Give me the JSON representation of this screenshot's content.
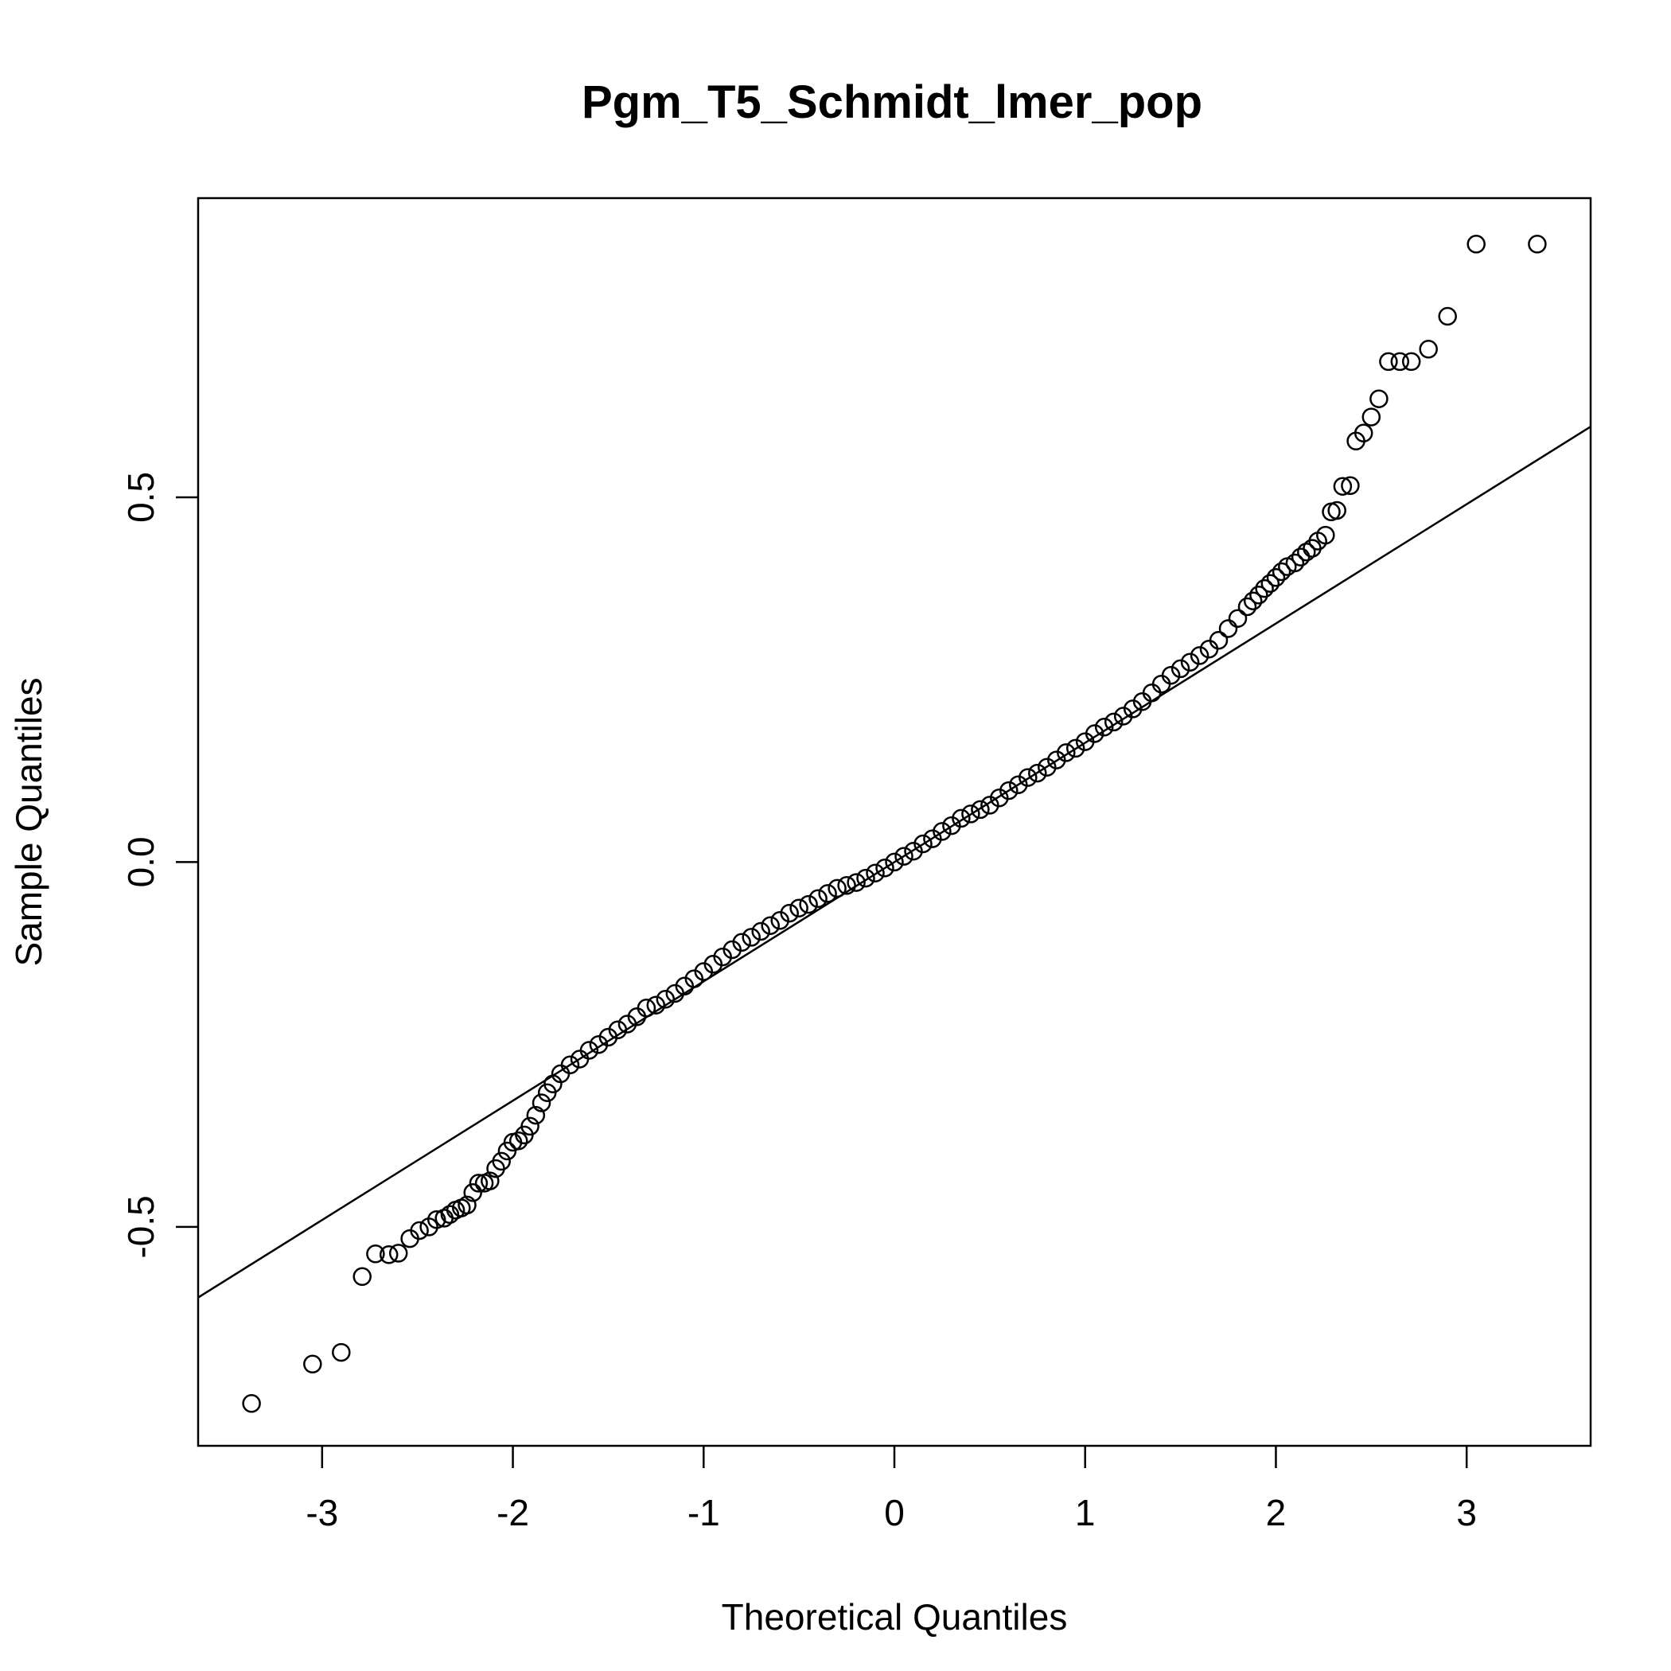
{
  "chart_data": {
    "type": "scatter",
    "title": "Pgm_T5_Schmidt_lmer_pop",
    "xlabel": "Theoretical Quantiles",
    "ylabel": "Sample Quantiles",
    "xlim": [
      -3.65,
      3.65
    ],
    "ylim": [
      -0.8,
      0.91
    ],
    "x_ticks": [
      -3,
      -2,
      -1,
      0,
      1,
      2,
      3
    ],
    "x_tick_labels": [
      "-3",
      "-2",
      "-1",
      "0",
      "1",
      "2",
      "3"
    ],
    "y_ticks": [
      -0.5,
      0.0,
      0.5
    ],
    "y_tick_labels": [
      "-0.5",
      "0.0",
      "0.5"
    ],
    "grid": false,
    "reference_line": {
      "slope": 0.1635,
      "intercept": 0.0
    },
    "points": [
      [
        -3.37,
        -0.742
      ],
      [
        -3.05,
        -0.688
      ],
      [
        -2.9,
        -0.672
      ],
      [
        -2.79,
        -0.568
      ],
      [
        -2.72,
        -0.537
      ],
      [
        -2.65,
        -0.538
      ],
      [
        -2.6,
        -0.536
      ],
      [
        -2.54,
        -0.516
      ],
      [
        -2.49,
        -0.505
      ],
      [
        -2.44,
        -0.5
      ],
      [
        -2.4,
        -0.49
      ],
      [
        -2.36,
        -0.488
      ],
      [
        -2.33,
        -0.483
      ],
      [
        -2.3,
        -0.477
      ],
      [
        -2.27,
        -0.474
      ],
      [
        -2.24,
        -0.47
      ],
      [
        -2.21,
        -0.453
      ],
      [
        -2.18,
        -0.44
      ],
      [
        -2.15,
        -0.44
      ],
      [
        -2.12,
        -0.437
      ],
      [
        -2.09,
        -0.42
      ],
      [
        -2.06,
        -0.41
      ],
      [
        -2.03,
        -0.396
      ],
      [
        -2.0,
        -0.384
      ],
      [
        -1.97,
        -0.382
      ],
      [
        -1.94,
        -0.374
      ],
      [
        -1.91,
        -0.362
      ],
      [
        -1.88,
        -0.347
      ],
      [
        -1.85,
        -0.33
      ],
      [
        -1.82,
        -0.316
      ],
      [
        -1.79,
        -0.304
      ],
      [
        -1.75,
        -0.29
      ],
      [
        -1.7,
        -0.278
      ],
      [
        -1.65,
        -0.27
      ],
      [
        -1.6,
        -0.258
      ],
      [
        -1.55,
        -0.25
      ],
      [
        -1.5,
        -0.24
      ],
      [
        -1.45,
        -0.23
      ],
      [
        -1.4,
        -0.222
      ],
      [
        -1.35,
        -0.212
      ],
      [
        -1.3,
        -0.2
      ],
      [
        -1.25,
        -0.196
      ],
      [
        -1.2,
        -0.188
      ],
      [
        -1.15,
        -0.18
      ],
      [
        -1.1,
        -0.17
      ],
      [
        -1.05,
        -0.16
      ],
      [
        -1.0,
        -0.15
      ],
      [
        -0.95,
        -0.14
      ],
      [
        -0.9,
        -0.13
      ],
      [
        -0.85,
        -0.12
      ],
      [
        -0.8,
        -0.11
      ],
      [
        -0.75,
        -0.103
      ],
      [
        -0.7,
        -0.095
      ],
      [
        -0.65,
        -0.087
      ],
      [
        -0.6,
        -0.08
      ],
      [
        -0.55,
        -0.07
      ],
      [
        -0.5,
        -0.063
      ],
      [
        -0.45,
        -0.058
      ],
      [
        -0.4,
        -0.05
      ],
      [
        -0.35,
        -0.043
      ],
      [
        -0.3,
        -0.036
      ],
      [
        -0.25,
        -0.032
      ],
      [
        -0.2,
        -0.028
      ],
      [
        -0.15,
        -0.022
      ],
      [
        -0.1,
        -0.015
      ],
      [
        -0.05,
        -0.008
      ],
      [
        0.0,
        0.0
      ],
      [
        0.05,
        0.008
      ],
      [
        0.1,
        0.015
      ],
      [
        0.15,
        0.025
      ],
      [
        0.2,
        0.032
      ],
      [
        0.25,
        0.042
      ],
      [
        0.3,
        0.05
      ],
      [
        0.35,
        0.06
      ],
      [
        0.4,
        0.066
      ],
      [
        0.45,
        0.072
      ],
      [
        0.5,
        0.078
      ],
      [
        0.55,
        0.088
      ],
      [
        0.6,
        0.098
      ],
      [
        0.65,
        0.106
      ],
      [
        0.7,
        0.116
      ],
      [
        0.75,
        0.122
      ],
      [
        0.8,
        0.13
      ],
      [
        0.85,
        0.14
      ],
      [
        0.9,
        0.15
      ],
      [
        0.95,
        0.156
      ],
      [
        1.0,
        0.165
      ],
      [
        1.05,
        0.176
      ],
      [
        1.1,
        0.185
      ],
      [
        1.15,
        0.192
      ],
      [
        1.2,
        0.2
      ],
      [
        1.25,
        0.21
      ],
      [
        1.3,
        0.22
      ],
      [
        1.35,
        0.232
      ],
      [
        1.4,
        0.244
      ],
      [
        1.45,
        0.256
      ],
      [
        1.5,
        0.265
      ],
      [
        1.55,
        0.274
      ],
      [
        1.6,
        0.283
      ],
      [
        1.65,
        0.292
      ],
      [
        1.7,
        0.304
      ],
      [
        1.75,
        0.32
      ],
      [
        1.8,
        0.334
      ],
      [
        1.85,
        0.35
      ],
      [
        1.88,
        0.358
      ],
      [
        1.91,
        0.366
      ],
      [
        1.94,
        0.375
      ],
      [
        1.97,
        0.382
      ],
      [
        2.0,
        0.39
      ],
      [
        2.03,
        0.398
      ],
      [
        2.06,
        0.405
      ],
      [
        2.1,
        0.41
      ],
      [
        2.13,
        0.418
      ],
      [
        2.16,
        0.425
      ],
      [
        2.19,
        0.43
      ],
      [
        2.22,
        0.44
      ],
      [
        2.26,
        0.448
      ],
      [
        2.29,
        0.48
      ],
      [
        2.32,
        0.482
      ],
      [
        2.35,
        0.515
      ],
      [
        2.39,
        0.516
      ],
      [
        2.42,
        0.577
      ],
      [
        2.46,
        0.588
      ],
      [
        2.5,
        0.61
      ],
      [
        2.54,
        0.635
      ],
      [
        2.59,
        0.686
      ],
      [
        2.65,
        0.686
      ],
      [
        2.71,
        0.686
      ],
      [
        2.8,
        0.703
      ],
      [
        2.9,
        0.748
      ],
      [
        3.05,
        0.847
      ],
      [
        3.37,
        0.847
      ]
    ]
  }
}
